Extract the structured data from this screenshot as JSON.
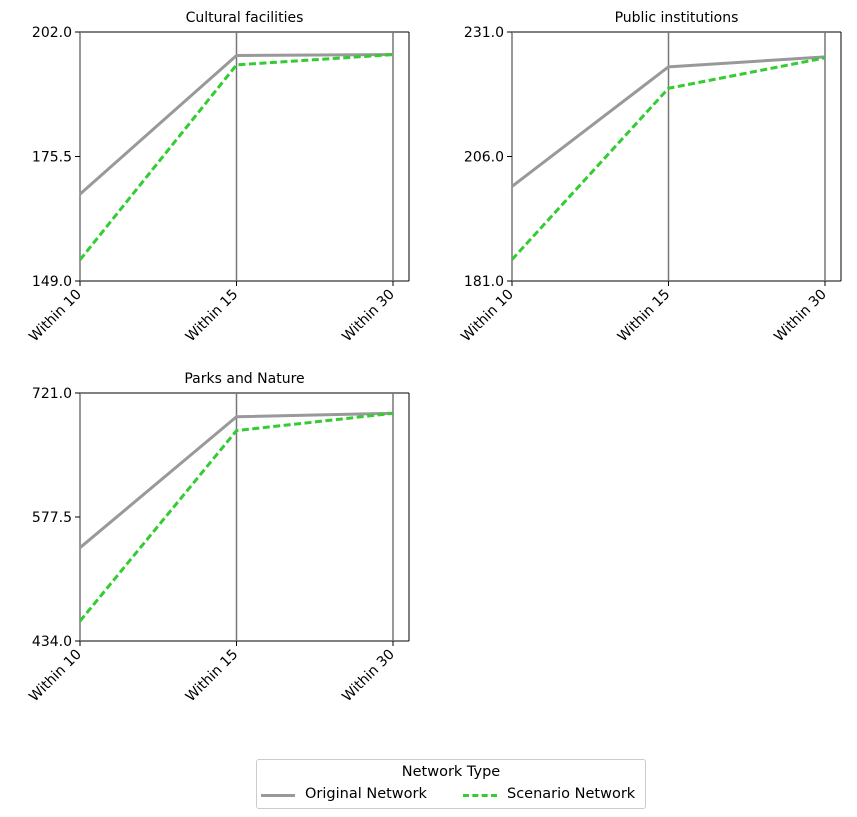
{
  "chart_data": [
    {
      "type": "line",
      "title": "Cultural facilities",
      "categories": [
        "Within 10",
        "Within 15",
        "Within 30"
      ],
      "ylim": [
        149.0,
        202.0
      ],
      "yticks": [
        "149.0",
        "175.5",
        "202.0"
      ],
      "series": [
        {
          "name": "Original Network",
          "values": [
            167.5,
            197.0,
            197.2
          ],
          "color": "#999999",
          "style": "solid"
        },
        {
          "name": "Scenario Network",
          "values": [
            153.5,
            195.0,
            197.2
          ],
          "color": "#33cc33",
          "style": "dashed"
        }
      ]
    },
    {
      "type": "line",
      "title": "Public institutions",
      "categories": [
        "Within 10",
        "Within 15",
        "Within 30"
      ],
      "ylim": [
        181.0,
        231.0
      ],
      "yticks": [
        "181.0",
        "206.0",
        "231.0"
      ],
      "series": [
        {
          "name": "Original Network",
          "values": [
            200.0,
            224.0,
            226.0
          ],
          "color": "#999999",
          "style": "solid"
        },
        {
          "name": "Scenario Network",
          "values": [
            185.3,
            219.7,
            225.8
          ],
          "color": "#33cc33",
          "style": "dashed"
        }
      ]
    },
    {
      "type": "line",
      "title": "Parks and Nature",
      "categories": [
        "Within 10",
        "Within 15",
        "Within 30"
      ],
      "ylim": [
        434.0,
        721.0
      ],
      "yticks": [
        "434.0",
        "577.5",
        "721.0"
      ],
      "series": [
        {
          "name": "Original Network",
          "values": [
            542.0,
            693.5,
            697.5
          ],
          "color": "#999999",
          "style": "solid"
        },
        {
          "name": "Scenario Network",
          "values": [
            457.0,
            677.5,
            697.5
          ],
          "color": "#33cc33",
          "style": "dashed"
        }
      ]
    }
  ],
  "legend": {
    "title": "Network Type",
    "placement": "bottom-center",
    "items": [
      {
        "label": "Original Network",
        "color": "#999999",
        "style": "solid"
      },
      {
        "label": "Scenario Network",
        "color": "#33cc33",
        "style": "dashed"
      }
    ]
  }
}
